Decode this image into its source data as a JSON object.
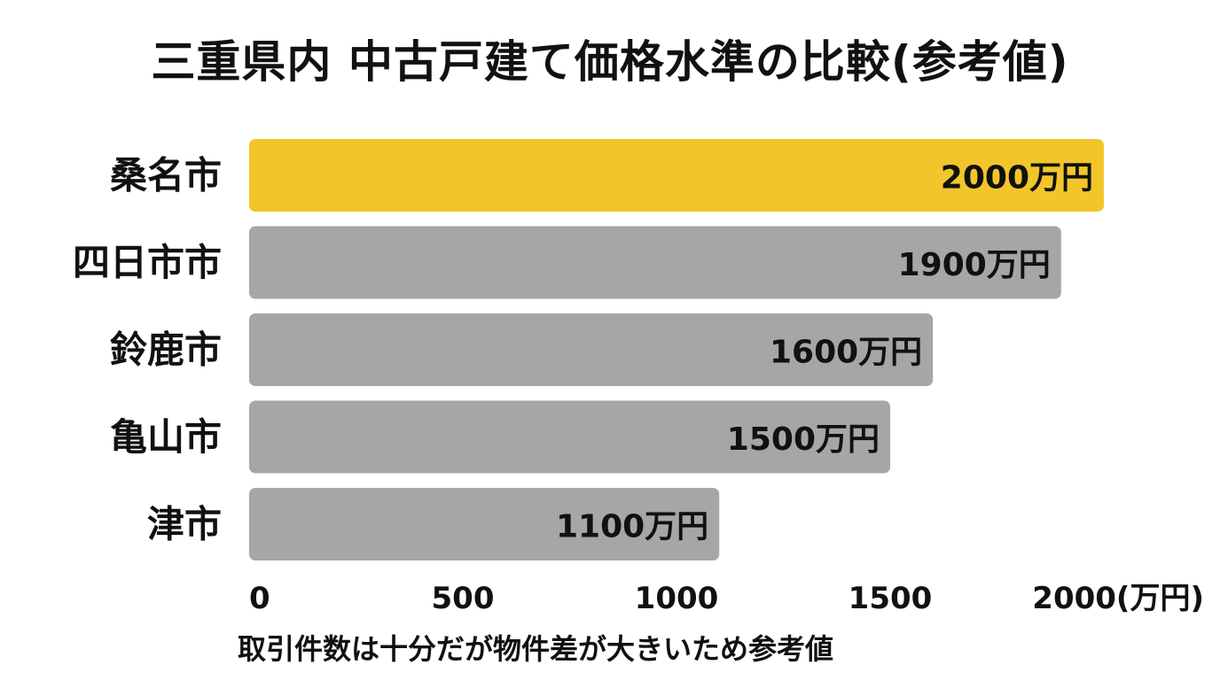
{
  "chart_data": {
    "type": "bar",
    "orientation": "horizontal",
    "title": "三重県内 中古戸建て価格水準の比較(参考値)",
    "categories": [
      "桑名市",
      "四日市市",
      "鈴鹿市",
      "亀山市",
      "津市"
    ],
    "values": [
      2000,
      1900,
      1600,
      1500,
      1100
    ],
    "value_labels": [
      "2000万円",
      "1900万円",
      "1600万円",
      "1500万円",
      "1100万円"
    ],
    "xlim": [
      0,
      2000
    ],
    "xticks": [
      0,
      500,
      1000,
      1500,
      2000
    ],
    "xtick_labels": [
      "0",
      "500",
      "1000",
      "1500",
      "2000(万円)"
    ],
    "grid": false,
    "legend": "none",
    "highlight_index": 0,
    "note": "取引件数は十分だが物件差が大きいため参考値"
  },
  "colors": {
    "highlight": "#F2C62A",
    "bar": "#A6A6A6",
    "text": "#111111",
    "background": "#FFFFFF"
  }
}
